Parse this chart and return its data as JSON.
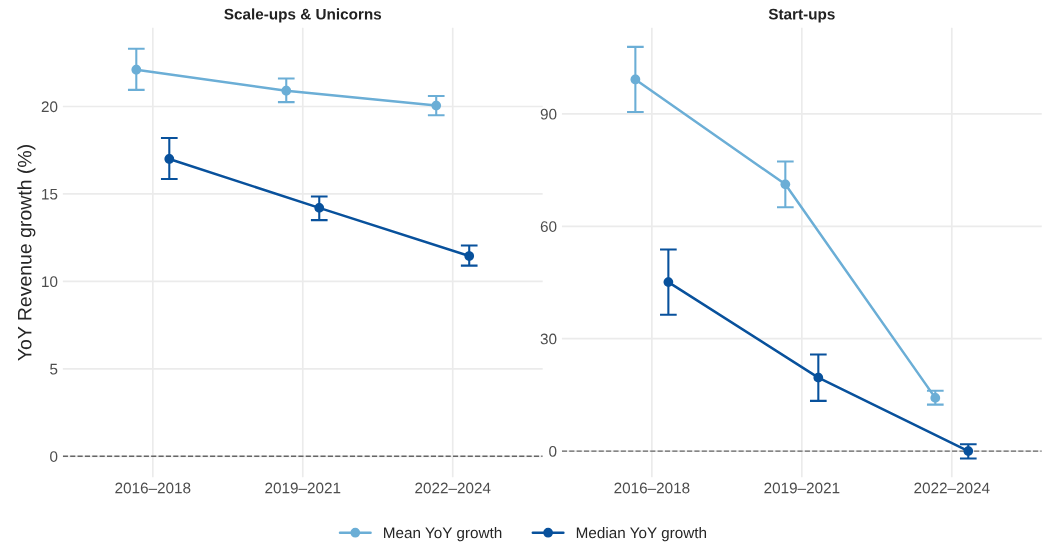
{
  "chart_data": [
    {
      "type": "line",
      "title": "Scale-ups & Unicorns",
      "ylabel": "YoY Revenue growth (%)",
      "categories": [
        "2016–2018",
        "2019–2021",
        "2022–2024"
      ],
      "ylim": [
        -1.2,
        24.5
      ],
      "yticks": [
        0,
        5,
        10,
        15,
        20
      ],
      "grid": true,
      "marker": "circle",
      "line_style": "solid",
      "legend": "bottom",
      "series": [
        {
          "name": "Mean YoY growth",
          "color": "#6baed6",
          "values": [
            22.1,
            20.9,
            20.05
          ],
          "errors": [
            [
              20.95,
              23.3
            ],
            [
              20.25,
              21.6
            ],
            [
              19.5,
              20.6
            ]
          ]
        },
        {
          "name": "Median YoY growth",
          "color": "#08519c",
          "values": [
            17.0,
            14.2,
            11.45
          ],
          "errors": [
            [
              15.85,
              18.2
            ],
            [
              13.5,
              14.85
            ],
            [
              10.9,
              12.05
            ]
          ]
        }
      ],
      "ref_lines": [
        {
          "axis": "y",
          "value": 0,
          "color": "#666666",
          "line_style": "dashed"
        }
      ]
    },
    {
      "type": "line",
      "title": "Start-ups",
      "categories": [
        "2016–2018",
        "2019–2021",
        "2022–2024"
      ],
      "ylim": [
        -7,
        113
      ],
      "yticks": [
        0,
        30,
        60,
        90
      ],
      "grid": true,
      "marker": "circle",
      "line_style": "solid",
      "series": [
        {
          "name": "Mean YoY growth",
          "color": "#6baed6",
          "values": [
            99.2,
            71.2,
            14.2
          ],
          "errors": [
            [
              90.5,
              107.9
            ],
            [
              65.1,
              77.3
            ],
            [
              12.4,
              16.1
            ]
          ]
        },
        {
          "name": "Median YoY growth",
          "color": "#08519c",
          "values": [
            45.1,
            19.6,
            0
          ],
          "errors": [
            [
              36.4,
              53.8
            ],
            [
              13.4,
              25.8
            ],
            [
              -2.0,
              1.8
            ]
          ]
        }
      ],
      "ref_lines": [
        {
          "axis": "y",
          "value": 0,
          "color": "#666666",
          "line_style": "dashed"
        }
      ]
    }
  ]
}
